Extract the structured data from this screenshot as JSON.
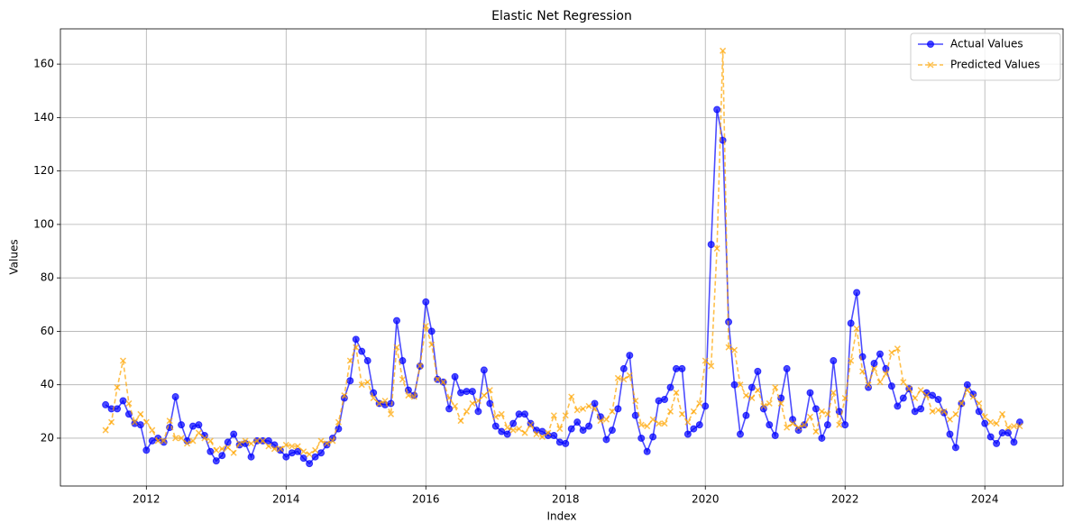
{
  "chart_data": {
    "type": "line",
    "title": "Elastic Net Regression",
    "x_label": "Index",
    "y_label": "Values",
    "x": [
      "2011-06",
      "2011-07",
      "2011-08",
      "2011-09",
      "2011-10",
      "2011-11",
      "2011-12",
      "2012-01",
      "2012-02",
      "2012-03",
      "2012-04",
      "2012-05",
      "2012-06",
      "2012-07",
      "2012-08",
      "2012-09",
      "2012-10",
      "2012-11",
      "2012-12",
      "2013-01",
      "2013-02",
      "2013-03",
      "2013-04",
      "2013-05",
      "2013-06",
      "2013-07",
      "2013-08",
      "2013-09",
      "2013-10",
      "2013-11",
      "2013-12",
      "2014-01",
      "2014-02",
      "2014-03",
      "2014-04",
      "2014-05",
      "2014-06",
      "2014-07",
      "2014-08",
      "2014-09",
      "2014-10",
      "2014-11",
      "2014-12",
      "2015-01",
      "2015-02",
      "2015-03",
      "2015-04",
      "2015-05",
      "2015-06",
      "2015-07",
      "2015-08",
      "2015-09",
      "2015-10",
      "2015-11",
      "2015-12",
      "2016-01",
      "2016-02",
      "2016-03",
      "2016-04",
      "2016-05",
      "2016-06",
      "2016-07",
      "2016-08",
      "2016-09",
      "2016-10",
      "2016-11",
      "2016-12",
      "2017-01",
      "2017-02",
      "2017-03",
      "2017-04",
      "2017-05",
      "2017-06",
      "2017-07",
      "2017-08",
      "2017-09",
      "2017-10",
      "2017-11",
      "2017-12",
      "2018-01",
      "2018-02",
      "2018-03",
      "2018-04",
      "2018-05",
      "2018-06",
      "2018-07",
      "2018-08",
      "2018-09",
      "2018-10",
      "2018-11",
      "2018-12",
      "2019-01",
      "2019-02",
      "2019-03",
      "2019-04",
      "2019-05",
      "2019-06",
      "2019-07",
      "2019-08",
      "2019-09",
      "2019-10",
      "2019-11",
      "2019-12",
      "2020-01",
      "2020-02",
      "2020-03",
      "2020-04",
      "2020-05",
      "2020-06",
      "2020-07",
      "2020-08",
      "2020-09",
      "2020-10",
      "2020-11",
      "2020-12",
      "2021-01",
      "2021-02",
      "2021-03",
      "2021-04",
      "2021-05",
      "2021-06",
      "2021-07",
      "2021-08",
      "2021-09",
      "2021-10",
      "2021-11",
      "2021-12",
      "2022-01",
      "2022-02",
      "2022-03",
      "2022-04",
      "2022-05",
      "2022-06",
      "2022-07",
      "2022-08",
      "2022-09",
      "2022-10",
      "2022-11",
      "2022-12",
      "2023-01",
      "2023-02",
      "2023-03",
      "2023-04",
      "2023-05",
      "2023-06",
      "2023-07",
      "2023-08",
      "2023-09",
      "2023-10",
      "2023-11",
      "2023-12",
      "2024-01",
      "2024-02",
      "2024-03",
      "2024-04",
      "2024-05",
      "2024-06",
      "2024-07"
    ],
    "series": [
      {
        "name": "Actual Values",
        "color": "#0000ff",
        "linestyle": "solid",
        "marker": "o",
        "values": [
          32.5,
          31,
          31,
          34,
          29,
          25.5,
          25,
          15.5,
          19,
          20,
          18.5,
          24,
          35.5,
          25,
          19,
          24.5,
          25,
          21,
          15,
          11.5,
          13.5,
          18.5,
          21.5,
          17.5,
          18,
          13,
          19,
          19,
          19,
          17.5,
          15.5,
          13,
          14.5,
          15,
          12.5,
          10.5,
          13,
          14.5,
          17.5,
          20,
          23.5,
          35,
          41.5,
          57,
          52.5,
          49,
          37,
          33,
          32.5,
          33,
          64,
          49,
          38,
          36,
          47,
          71,
          60,
          42,
          41,
          31,
          43,
          37,
          37.5,
          37.5,
          30,
          45.5,
          33,
          24.5,
          22.5,
          21.5,
          25.5,
          29,
          29,
          25.5,
          23,
          22.5,
          21,
          21,
          18.5,
          18,
          23.5,
          26,
          23,
          24.5,
          33,
          28,
          19.5,
          23,
          31,
          46,
          51,
          28.5,
          20,
          15,
          20.5,
          34,
          34.5,
          39,
          46,
          46,
          21.5,
          23.5,
          25,
          32,
          92.5,
          143,
          131.5,
          63.5,
          40,
          21.5,
          28.5,
          39,
          45,
          31,
          25,
          21,
          35,
          46,
          27,
          23,
          25,
          37,
          31,
          20,
          25,
          49,
          30,
          25,
          63,
          74.5,
          50.5,
          39,
          48,
          51.5,
          46,
          39.5,
          32,
          35,
          38.5,
          30,
          31,
          37,
          36,
          34.5,
          29.5,
          21.5,
          16.5,
          33,
          40,
          36.5,
          30,
          25.5,
          20.5,
          18,
          22,
          22,
          18.5,
          26
        ]
      },
      {
        "name": "Predicted Values",
        "color": "#ffa500",
        "linestyle": "dashed",
        "marker": "x",
        "values": [
          23,
          26,
          39,
          49,
          33,
          26,
          29,
          26,
          23,
          19,
          19,
          26.5,
          20,
          20,
          18,
          19,
          22,
          20,
          19,
          15.5,
          16,
          16.5,
          14.5,
          18,
          19,
          18,
          19,
          19,
          17,
          16,
          16,
          17.5,
          17,
          17,
          15,
          14,
          15.5,
          19,
          18,
          19,
          26,
          36,
          49,
          54,
          40,
          41,
          35,
          33,
          34,
          29,
          54,
          42,
          36,
          35.5,
          47,
          62,
          55,
          42,
          41,
          35,
          32,
          26.5,
          30,
          33,
          34,
          36,
          38,
          28,
          29,
          24,
          23,
          23.5,
          22,
          25,
          21.5,
          20.5,
          22,
          28.5,
          23.5,
          28.5,
          35.5,
          30.5,
          31,
          32,
          31,
          26.5,
          27,
          30,
          42.5,
          42,
          43.5,
          34,
          25,
          24.5,
          27,
          25.5,
          25.5,
          30,
          37,
          29,
          26,
          30,
          33,
          49,
          47,
          91,
          165,
          54,
          53,
          40,
          36,
          35,
          38,
          32,
          33,
          39,
          33,
          24,
          25.5,
          24,
          25,
          28,
          22.5,
          30,
          29,
          37,
          25,
          35,
          49,
          61,
          45,
          40,
          46,
          41,
          44,
          52,
          53.5,
          41,
          38.5,
          35,
          38,
          36,
          30,
          30.5,
          30,
          27,
          29,
          33,
          38,
          35.5,
          33,
          28,
          26,
          25.5,
          29,
          24,
          24.5,
          24.5
        ]
      }
    ],
    "xlim": [
      2010.77,
      2025.12
    ],
    "xticks": [
      2012,
      2014,
      2016,
      2018,
      2020,
      2022,
      2024
    ],
    "ylim": [
      2.1,
      173.2
    ],
    "yticks": [
      20,
      40,
      60,
      80,
      100,
      120,
      140,
      160
    ],
    "grid": true,
    "legend": "upper right"
  }
}
